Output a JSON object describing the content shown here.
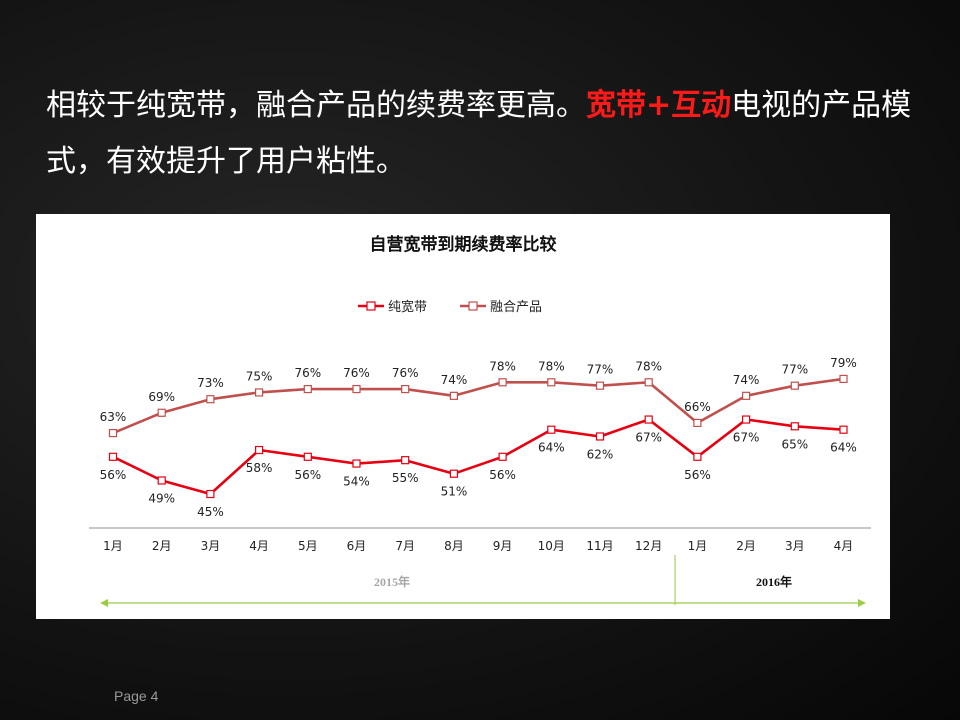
{
  "headline": {
    "part1": "相较于纯宽带，融合产品的续费率更高。",
    "highlight": "宽带+互动",
    "part2": "电视的产品模式，有效提升了用户粘性。"
  },
  "footer": {
    "page": "Page  4"
  },
  "colors": {
    "broadband": "#e60012",
    "converged": "#c0504d"
  },
  "chart_data": {
    "type": "line",
    "title": "自营宽带到期续费率比较",
    "categories": [
      "1月",
      "2月",
      "3月",
      "4月",
      "5月",
      "6月",
      "7月",
      "8月",
      "9月",
      "10月",
      "11月",
      "12月",
      "1月",
      "2月",
      "3月",
      "4月"
    ],
    "year_groups": [
      {
        "label": "2015年",
        "start": 0,
        "end": 11
      },
      {
        "label": "2016年",
        "start": 12,
        "end": 15
      }
    ],
    "series": [
      {
        "name": "纯宽带",
        "values": [
          56,
          49,
          45,
          58,
          56,
          54,
          55,
          51,
          56,
          64,
          62,
          67,
          56,
          67,
          65,
          64
        ]
      },
      {
        "name": "融合产品",
        "values": [
          63,
          69,
          73,
          75,
          76,
          76,
          76,
          74,
          78,
          78,
          77,
          78,
          66,
          74,
          77,
          79
        ]
      }
    ],
    "data_label_suffix": "%",
    "legend_position": "top",
    "ylim": [
      0,
      100
    ],
    "grid": false
  }
}
